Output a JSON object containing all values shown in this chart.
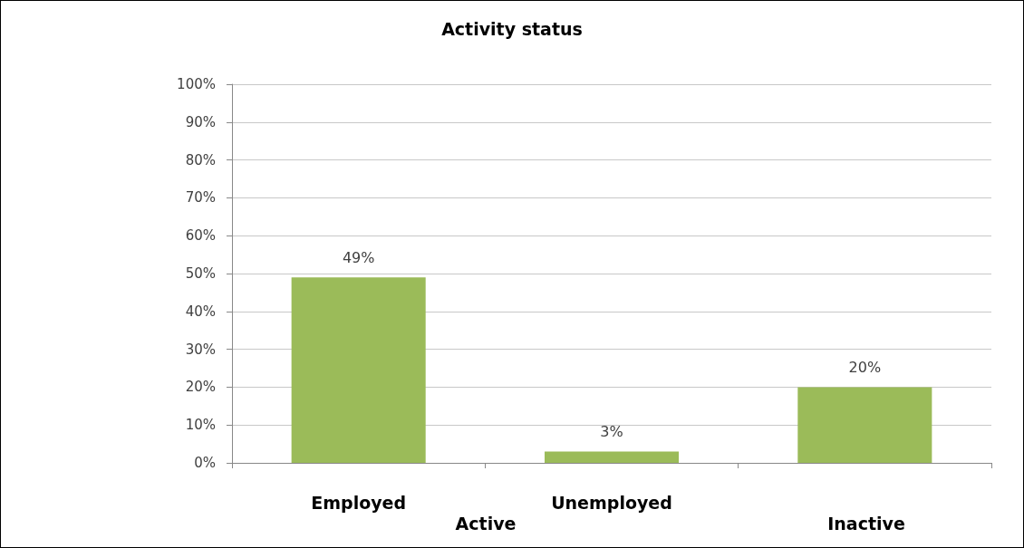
{
  "chart_data": {
    "type": "bar",
    "title": "Activity status",
    "categories": [
      "Employed",
      "Unemployed",
      null
    ],
    "values": [
      49,
      3,
      20
    ],
    "value_labels": [
      "49%",
      "3%",
      "20%"
    ],
    "color": "#9bbb59",
    "ylim": [
      0,
      100
    ],
    "yticks": [
      {
        "value": 0,
        "label": "0%"
      },
      {
        "value": 10,
        "label": "10%"
      },
      {
        "value": 20,
        "label": "20%"
      },
      {
        "value": 30,
        "label": "30%"
      },
      {
        "value": 40,
        "label": "40%"
      },
      {
        "value": 50,
        "label": "50%"
      },
      {
        "value": 60,
        "label": "60%"
      },
      {
        "value": 70,
        "label": "70%"
      },
      {
        "value": 80,
        "label": "80%"
      },
      {
        "value": 90,
        "label": "90%"
      },
      {
        "value": 100,
        "label": "100%"
      }
    ],
    "grid": true,
    "annotations": [
      "Active",
      "Inactive"
    ]
  }
}
